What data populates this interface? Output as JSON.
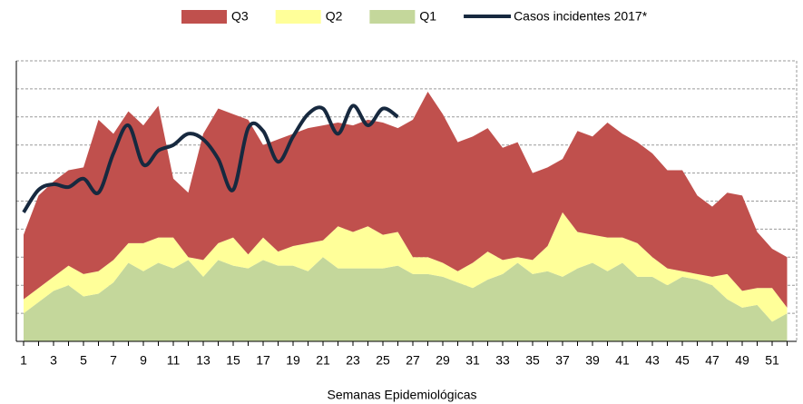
{
  "chart_data": {
    "type": "stacked-area",
    "x_axis_label": "Semanas Epidemiológicas",
    "categories": [
      "1",
      null,
      "3",
      null,
      "5",
      null,
      "7",
      null,
      "9",
      null,
      "11",
      null,
      "13",
      null,
      "15",
      null,
      "17",
      null,
      "19",
      null,
      "21",
      null,
      "23",
      null,
      "25",
      null,
      "27",
      null,
      "29",
      null,
      "31",
      null,
      "33",
      null,
      "35",
      null,
      "37",
      null,
      "39",
      null,
      "41",
      null,
      "43",
      null,
      "45",
      null,
      "47",
      null,
      "49",
      null,
      "51",
      null
    ],
    "series": [
      {
        "name": "Q3",
        "type": "area",
        "color": "#c0504d",
        "values": [
          2.3,
          3.3,
          3.4,
          3.4,
          3.8,
          5.4,
          4.5,
          4.7,
          4.2,
          4.7,
          2.1,
          2.3,
          4.5,
          4.8,
          4.4,
          4.8,
          3.3,
          4.0,
          4.0,
          4.1,
          4.1,
          3.7,
          3.8,
          3.8,
          4.0,
          3.7,
          4.9,
          5.9,
          5.3,
          4.6,
          4.5,
          4.4,
          4.0,
          4.1,
          3.1,
          2.8,
          1.9,
          3.6,
          3.5,
          4.1,
          3.7,
          3.6,
          3.7,
          3.5,
          3.6,
          2.8,
          2.5,
          2.9,
          3.4,
          2.0,
          1.4,
          1.8
        ]
      },
      {
        "name": "Q2",
        "type": "area",
        "color": "#ffff99",
        "values": [
          0.5,
          0.5,
          0.5,
          0.7,
          0.8,
          0.8,
          0.8,
          0.7,
          1.0,
          0.9,
          1.1,
          0.1,
          0.6,
          0.6,
          1.0,
          0.5,
          0.8,
          0.5,
          0.7,
          1.0,
          0.6,
          1.5,
          1.3,
          1.5,
          1.2,
          1.2,
          0.6,
          0.6,
          0.5,
          0.4,
          0.9,
          1.0,
          0.5,
          0.2,
          0.5,
          0.9,
          2.3,
          1.3,
          1.0,
          1.2,
          0.9,
          1.2,
          0.7,
          0.6,
          0.2,
          0.2,
          0.3,
          0.9,
          0.6,
          0.6,
          1.2,
          0.2
        ]
      },
      {
        "name": "Q1",
        "type": "area",
        "color": "#c4d79b",
        "values": [
          1.0,
          1.4,
          1.8,
          2.0,
          1.6,
          1.7,
          2.1,
          2.8,
          2.5,
          2.8,
          2.6,
          2.9,
          2.3,
          2.9,
          2.7,
          2.6,
          2.9,
          2.7,
          2.7,
          2.5,
          3.0,
          2.6,
          2.6,
          2.6,
          2.6,
          2.7,
          2.4,
          2.4,
          2.3,
          2.1,
          1.9,
          2.2,
          2.4,
          2.8,
          2.4,
          2.5,
          2.3,
          2.6,
          2.8,
          2.5,
          2.8,
          2.3,
          2.3,
          2.0,
          2.3,
          2.2,
          2.0,
          1.5,
          1.2,
          1.3,
          0.7,
          1.0
        ]
      },
      {
        "name": "Casos incidentes 2017*",
        "type": "line",
        "color": "#17293f",
        "values": [
          4.6,
          5.4,
          5.6,
          5.5,
          5.8,
          5.3,
          6.7,
          7.7,
          6.3,
          6.8,
          7.0,
          7.4,
          7.2,
          6.5,
          5.4,
          7.6,
          7.5,
          6.4,
          7.3,
          8.1,
          8.3,
          7.4,
          8.4,
          7.7,
          8.3,
          8.0,
          null,
          null,
          null,
          null,
          null,
          null,
          null,
          null,
          null,
          null,
          null,
          null,
          null,
          null,
          null,
          null,
          null,
          null,
          null,
          null,
          null,
          null,
          null,
          null,
          null,
          null
        ]
      }
    ],
    "ylim": [
      0,
      10
    ],
    "yticks": [
      0,
      1,
      2,
      3,
      4,
      5,
      6,
      7,
      8,
      9,
      10
    ],
    "ytick_labels": false,
    "grid": true,
    "legend": "top"
  }
}
